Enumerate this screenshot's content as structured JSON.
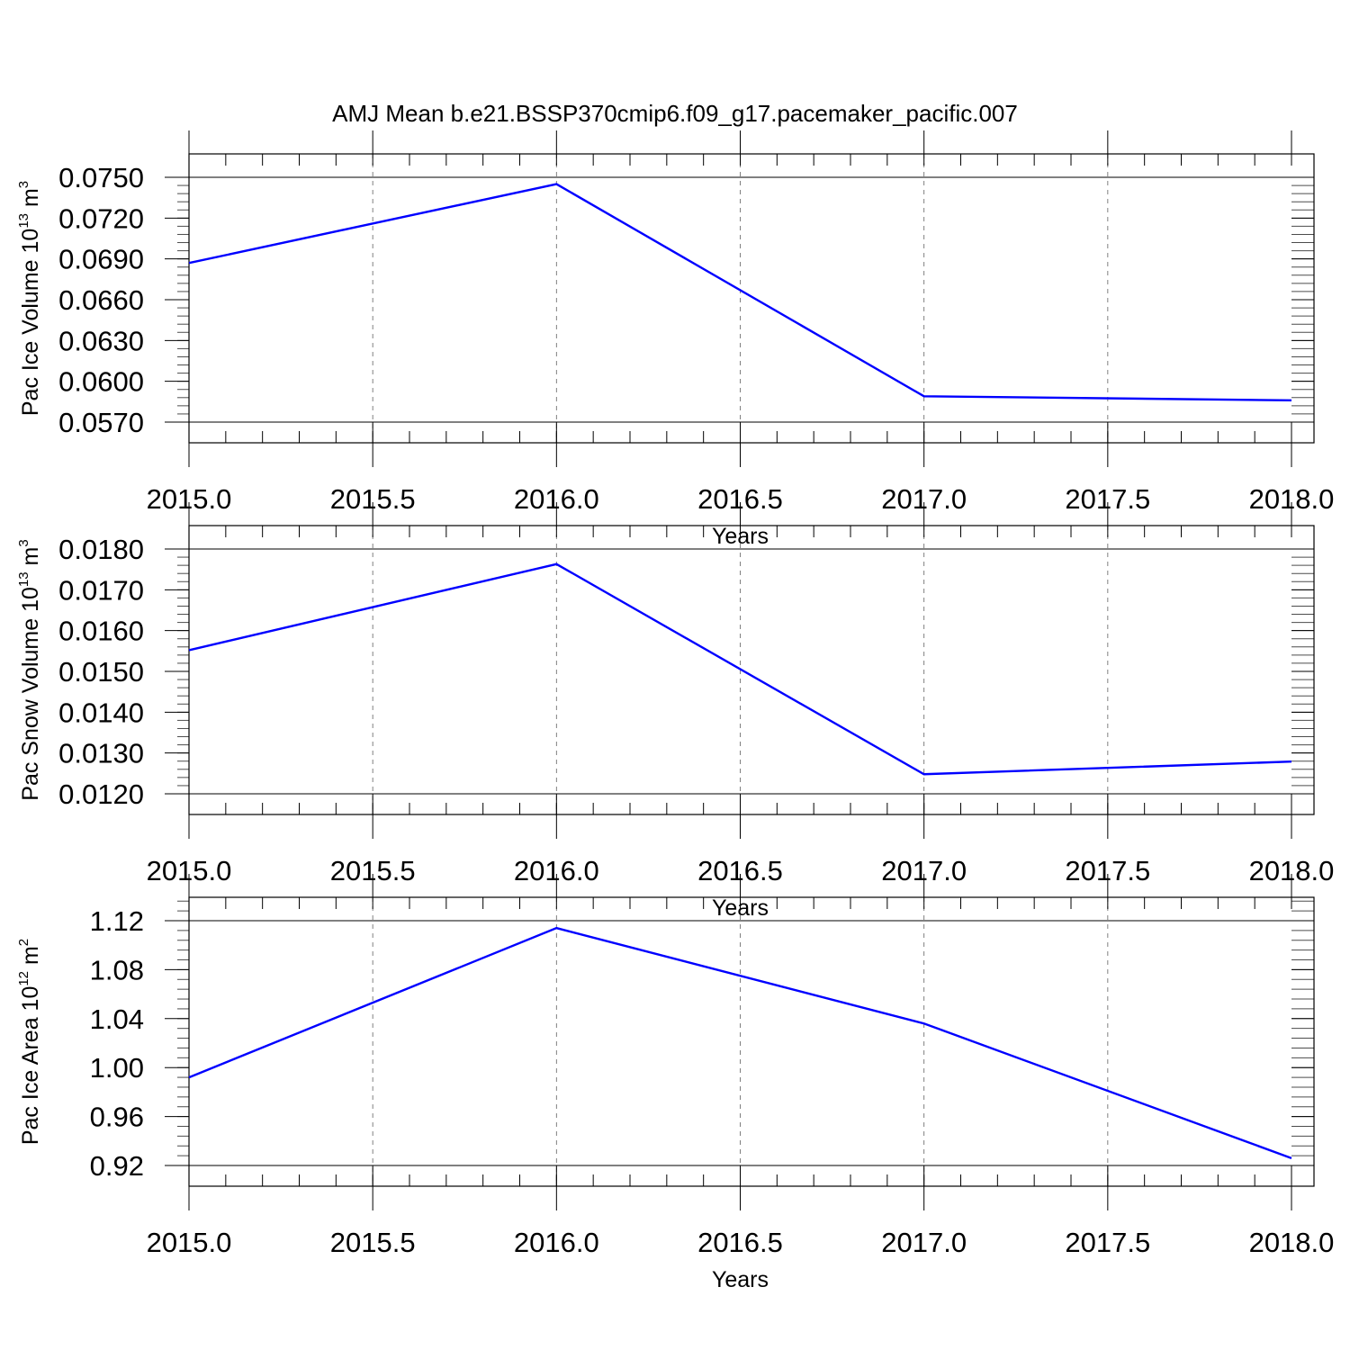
{
  "figure": {
    "title": "AMJ Mean b.e21.BSSP370cmip6.f09_g17.pacemaker_pacific.007"
  },
  "chart_data": [
    {
      "type": "line",
      "xlabel": "Years",
      "ylabel": {
        "main": "Pac Ice Volume 10",
        "sup": "13",
        "unit": " m",
        "unit_sup": "3"
      },
      "x": [
        2015.0,
        2016.0,
        2017.0,
        2018.0
      ],
      "series": [
        {
          "values": [
            0.0687,
            0.0745,
            0.0589,
            0.0586
          ],
          "color": "#0000ff"
        }
      ],
      "xlim": [
        2015.0,
        2018.0
      ],
      "ylim": [
        0.057,
        0.075
      ],
      "xticks": [
        2015.0,
        2015.5,
        2016.0,
        2016.5,
        2017.0,
        2017.5,
        2018.0
      ],
      "xtick_labels": [
        "2015.0",
        "2015.5",
        "2016.0",
        "2016.5",
        "2017.0",
        "2017.5",
        "2018.0"
      ],
      "yticks": [
        0.057,
        0.06,
        0.063,
        0.066,
        0.069,
        0.072,
        0.075
      ],
      "ytick_labels": [
        "0.0570",
        "0.0600",
        "0.0630",
        "0.0660",
        "0.0690",
        "0.0720",
        "0.0750"
      ],
      "y_minor_step": 0.0006,
      "grid": "x-dashed"
    },
    {
      "type": "line",
      "xlabel": "Years",
      "ylabel": {
        "main": "Pac Snow Volume 10",
        "sup": "13",
        "unit": " m",
        "unit_sup": "3"
      },
      "x": [
        2015.0,
        2016.0,
        2017.0,
        2018.0
      ],
      "series": [
        {
          "values": [
            0.01552,
            0.01763,
            0.01248,
            0.01279
          ],
          "color": "#0000ff"
        }
      ],
      "xlim": [
        2015.0,
        2018.0
      ],
      "ylim": [
        0.012,
        0.018
      ],
      "xticks": [
        2015.0,
        2015.5,
        2016.0,
        2016.5,
        2017.0,
        2017.5,
        2018.0
      ],
      "xtick_labels": [
        "2015.0",
        "2015.5",
        "2016.0",
        "2016.5",
        "2017.0",
        "2017.5",
        "2018.0"
      ],
      "yticks": [
        0.012,
        0.013,
        0.014,
        0.015,
        0.016,
        0.017,
        0.018
      ],
      "ytick_labels": [
        "0.0120",
        "0.0130",
        "0.0140",
        "0.0150",
        "0.0160",
        "0.0170",
        "0.0180"
      ],
      "y_minor_step": 0.0002,
      "grid": "x-dashed"
    },
    {
      "type": "line",
      "xlabel": "Years",
      "ylabel": {
        "main": "Pac Ice Area 10",
        "sup": "12",
        "unit": " m",
        "unit_sup": "2"
      },
      "x": [
        2015.0,
        2016.0,
        2017.0,
        2018.0
      ],
      "series": [
        {
          "values": [
            0.992,
            1.114,
            1.036,
            0.926
          ],
          "color": "#0000ff"
        }
      ],
      "xlim": [
        2015.0,
        2018.0
      ],
      "ylim": [
        0.92,
        1.12
      ],
      "xticks": [
        2015.0,
        2015.5,
        2016.0,
        2016.5,
        2017.0,
        2017.5,
        2018.0
      ],
      "xtick_labels": [
        "2015.0",
        "2015.5",
        "2016.0",
        "2016.5",
        "2017.0",
        "2017.5",
        "2018.0"
      ],
      "yticks": [
        0.92,
        0.96,
        1.0,
        1.04,
        1.08,
        1.12
      ],
      "ytick_labels": [
        "0.92",
        "0.96",
        "1.00",
        "1.04",
        "1.08",
        "1.12"
      ],
      "y_minor_step": 0.008,
      "ylim_top_extra": 0.018,
      "grid": "x-dashed"
    }
  ]
}
